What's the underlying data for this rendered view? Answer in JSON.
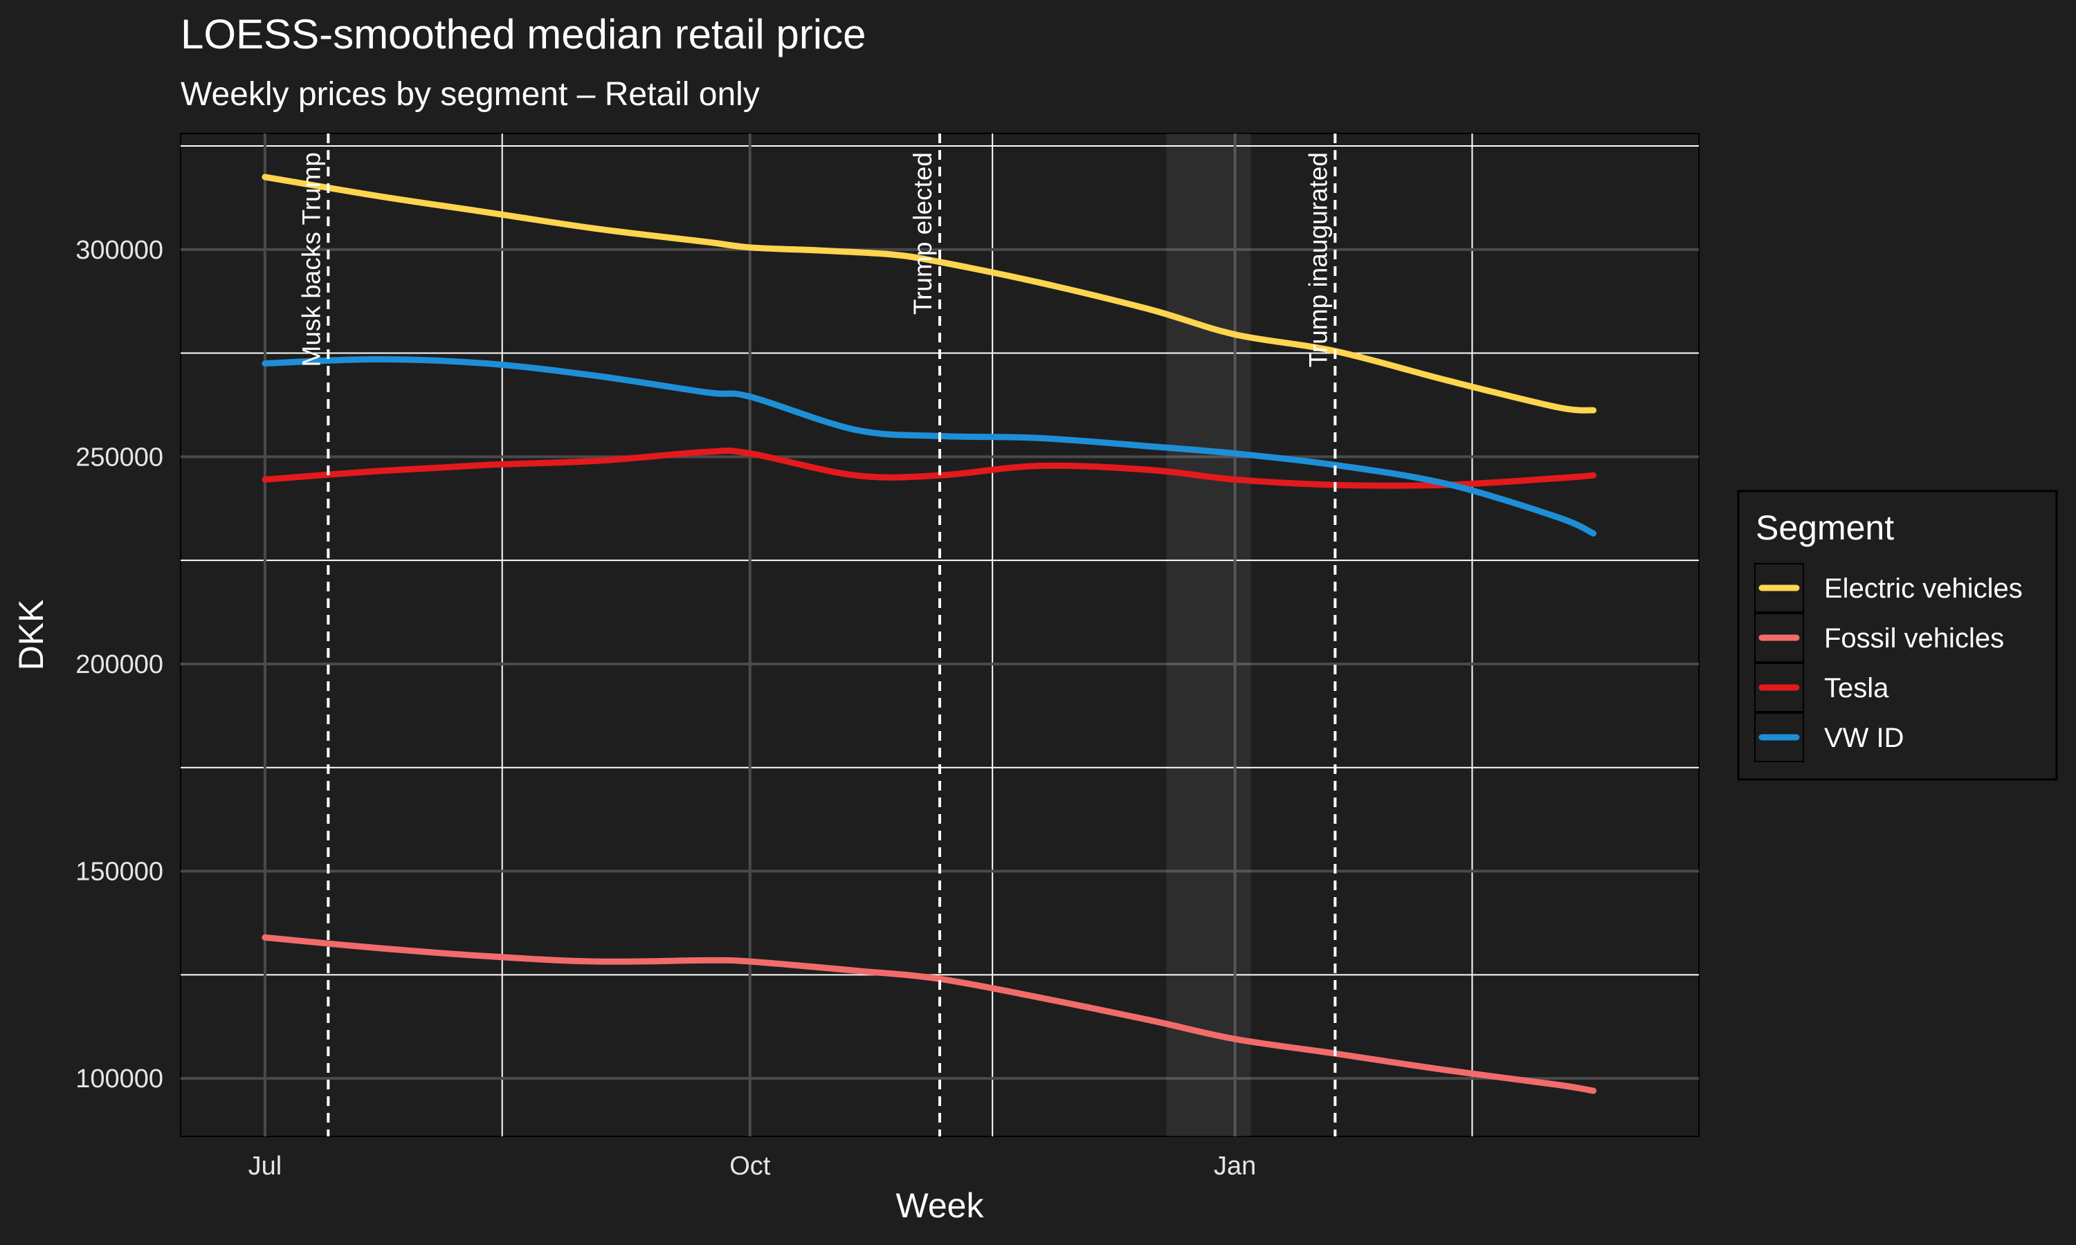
{
  "chart_data": {
    "type": "line",
    "title": "LOESS-smoothed median retail price",
    "subtitle": "Weekly prices by segment – Retail only",
    "xlabel": "Week",
    "ylabel": "DKK",
    "x_ticks": [
      {
        "label": "Jul",
        "date": "2024-07-01"
      },
      {
        "label": "Oct",
        "date": "2024-10-01"
      },
      {
        "label": "Jan",
        "date": "2025-01-01"
      }
    ],
    "x_minor_gridlines": [
      "2024-08-15",
      "2024-11-16",
      "2025-02-15"
    ],
    "xlim": [
      "2024-06-15",
      "2025-03-30"
    ],
    "y_ticks": [
      100000,
      150000,
      200000,
      250000,
      300000
    ],
    "y_minor_gridlines": [
      125000,
      175000,
      225000,
      275000,
      325000
    ],
    "ylim": [
      86000,
      328000
    ],
    "grid": true,
    "legend": {
      "title": "Segment",
      "position": "right"
    },
    "shaded_period": {
      "start": "2024-12-19",
      "end": "2025-01-04"
    },
    "annotations": [
      {
        "label": "Musk backs Trump",
        "date": "2024-07-13",
        "style": "dashed-vline"
      },
      {
        "label": "Trump elected",
        "date": "2024-11-06",
        "style": "dashed-vline"
      },
      {
        "label": "Trump inaugurated",
        "date": "2025-01-20",
        "style": "dashed-vline"
      }
    ],
    "series": [
      {
        "name": "Electric vehicles",
        "color": "#FFD54F",
        "points": [
          [
            "2024-07-01",
            317500
          ],
          [
            "2024-07-22",
            313000
          ],
          [
            "2024-08-12",
            309000
          ],
          [
            "2024-09-02",
            305000
          ],
          [
            "2024-09-23",
            301800
          ],
          [
            "2024-10-01",
            300500
          ],
          [
            "2024-10-14",
            299800
          ],
          [
            "2024-10-28",
            298800
          ],
          [
            "2024-11-06",
            297000
          ],
          [
            "2024-11-25",
            292000
          ],
          [
            "2024-12-16",
            285500
          ],
          [
            "2025-01-01",
            279500
          ],
          [
            "2025-01-20",
            275500
          ],
          [
            "2025-02-10",
            268500
          ],
          [
            "2025-03-03",
            262000
          ],
          [
            "2025-03-10",
            261200
          ]
        ]
      },
      {
        "name": "Fossil vehicles",
        "color": "#F26B6B",
        "points": [
          [
            "2024-07-01",
            134000
          ],
          [
            "2024-07-22",
            131500
          ],
          [
            "2024-08-12",
            129500
          ],
          [
            "2024-09-02",
            128200
          ],
          [
            "2024-09-23",
            128500
          ],
          [
            "2024-10-01",
            128200
          ],
          [
            "2024-10-21",
            126000
          ],
          [
            "2024-11-06",
            124000
          ],
          [
            "2024-11-25",
            119500
          ],
          [
            "2024-12-16",
            114000
          ],
          [
            "2025-01-01",
            109500
          ],
          [
            "2025-01-20",
            106000
          ],
          [
            "2025-02-10",
            102000
          ],
          [
            "2025-03-03",
            98500
          ],
          [
            "2025-03-10",
            97000
          ]
        ]
      },
      {
        "name": "Tesla",
        "color": "#E31A1C",
        "points": [
          [
            "2024-07-01",
            244500
          ],
          [
            "2024-07-22",
            246500
          ],
          [
            "2024-08-12",
            248000
          ],
          [
            "2024-09-02",
            249000
          ],
          [
            "2024-09-23",
            251200
          ],
          [
            "2024-10-01",
            250800
          ],
          [
            "2024-10-21",
            245500
          ],
          [
            "2024-11-06",
            245500
          ],
          [
            "2024-11-25",
            247800
          ],
          [
            "2024-12-16",
            246800
          ],
          [
            "2025-01-01",
            244500
          ],
          [
            "2025-01-20",
            243200
          ],
          [
            "2025-02-10",
            243200
          ],
          [
            "2025-03-03",
            244800
          ],
          [
            "2025-03-10",
            245500
          ]
        ]
      },
      {
        "name": "VW ID",
        "color": "#1E8FD6",
        "points": [
          [
            "2024-07-01",
            272500
          ],
          [
            "2024-07-22",
            273500
          ],
          [
            "2024-08-12",
            272500
          ],
          [
            "2024-09-02",
            269500
          ],
          [
            "2024-09-23",
            265500
          ],
          [
            "2024-10-01",
            264500
          ],
          [
            "2024-10-21",
            256500
          ],
          [
            "2024-11-06",
            255000
          ],
          [
            "2024-11-25",
            254500
          ],
          [
            "2024-12-16",
            252500
          ],
          [
            "2025-01-01",
            250800
          ],
          [
            "2025-01-20",
            248000
          ],
          [
            "2025-02-10",
            243500
          ],
          [
            "2025-03-03",
            235500
          ],
          [
            "2025-03-10",
            231500
          ]
        ]
      }
    ]
  }
}
